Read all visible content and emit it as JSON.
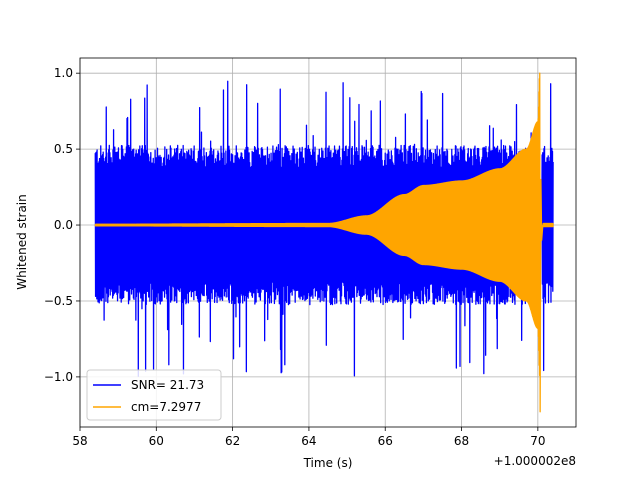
{
  "chart_data": {
    "type": "line",
    "title": "",
    "xlabel": "Time (s)",
    "ylabel": "Whitened strain",
    "x_offset_label": "+1.000002e8",
    "xlim": [
      58.0,
      71.0
    ],
    "ylim": [
      -1.33,
      1.1
    ],
    "xticks": [
      58,
      60,
      62,
      64,
      66,
      68,
      70
    ],
    "xtick_labels": [
      "58",
      "60",
      "62",
      "64",
      "66",
      "68",
      "70"
    ],
    "yticks": [
      -1.0,
      -0.5,
      0.0,
      0.5,
      1.0
    ],
    "ytick_labels": [
      "−1.0",
      "−0.5",
      "0.0",
      "0.5",
      "1.0"
    ],
    "grid": true,
    "legend_position": "lower-left",
    "series": [
      {
        "name": "SNR= 21.73",
        "color": "#0000ff",
        "kind": "whitened-noise",
        "x_range": [
          58.4,
          70.4
        ],
        "typical_envelope": 0.5,
        "peak_max": 1.0,
        "peak_min": -1.07,
        "tail_cut_x": 70.05
      },
      {
        "name": "cm=7.2977",
        "color": "#ffa500",
        "kind": "chirp-template",
        "x_range": [
          58.4,
          70.4
        ],
        "envelope_points": [
          [
            58.4,
            0.005
          ],
          [
            64.5,
            0.01
          ],
          [
            65.5,
            0.06
          ],
          [
            66.5,
            0.2
          ],
          [
            67.0,
            0.26
          ],
          [
            68.0,
            0.29
          ],
          [
            69.0,
            0.37
          ],
          [
            69.7,
            0.5
          ],
          [
            70.0,
            0.68
          ],
          [
            70.05,
            1.0
          ]
        ],
        "merger_x": 70.05,
        "merger_max": 1.0,
        "merger_min": -1.23,
        "ringdown_level": 0.01
      }
    ]
  }
}
